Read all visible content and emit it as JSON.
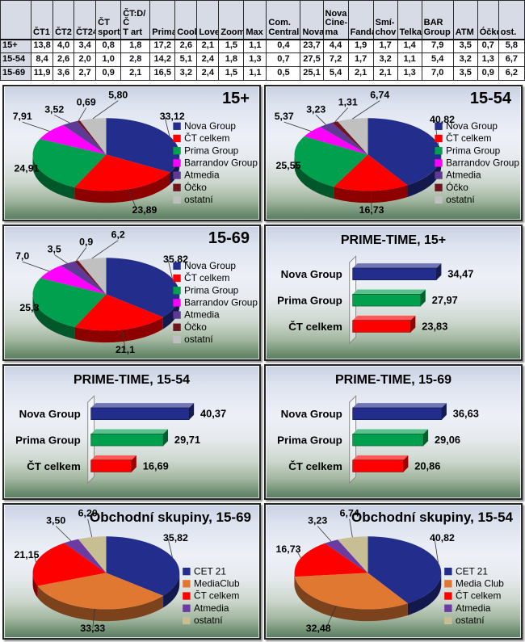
{
  "table": {
    "corner": "",
    "columns": [
      "ČT1",
      "ČT2",
      "ČT24",
      "ČT\nsport",
      "ČT:D/Č\nT art",
      "Prima",
      "Cool",
      "Love",
      "Zoom",
      "Max",
      "Com.\nCentral",
      "Nova",
      "Nova\nCine-\nma",
      "Fanda",
      "Smí-\nchov",
      "Telka",
      "BAR\nGroup",
      "ATM",
      "Óčko",
      "ost."
    ],
    "rows": [
      {
        "label": "15+",
        "values": [
          "13,8",
          "4,0",
          "3,4",
          "0,8",
          "1,8",
          "17,2",
          "2,6",
          "2,1",
          "1,5",
          "1,1",
          "0,4",
          "23,7",
          "4,4",
          "1,9",
          "1,7",
          "1,4",
          "7,9",
          "3,5",
          "0,7",
          "5,8"
        ]
      },
      {
        "label": "15-54",
        "values": [
          "8,4",
          "2,6",
          "2,0",
          "1,0",
          "2,8",
          "14,2",
          "5,1",
          "2,4",
          "1,8",
          "1,3",
          "0,7",
          "27,5",
          "7,2",
          "1,7",
          "3,2",
          "1,1",
          "5,4",
          "3,2",
          "1,3",
          "6,7"
        ]
      },
      {
        "label": "15-69",
        "values": [
          "11,9",
          "3,6",
          "2,7",
          "0,9",
          "2,1",
          "16,5",
          "3,2",
          "2,4",
          "1,5",
          "1,1",
          "0,5",
          "25,1",
          "5,4",
          "2,1",
          "2,1",
          "1,3",
          "7,0",
          "3,5",
          "0,9",
          "6,2"
        ]
      }
    ]
  },
  "colors": {
    "navy": "#232E8C",
    "red": "#FF0000",
    "green": "#00A04E",
    "magenta": "#FF00FF",
    "purple": "#5E3A94",
    "maroon": "#6E1520",
    "silver": "#C0C0C0",
    "orange": "#E07832",
    "tan": "#C8BE94",
    "panel_border": "#262626"
  },
  "chart_data": [
    {
      "type": "pie",
      "title": "15+",
      "labels": [
        "Nova Group",
        "ČT celkem",
        "Prima Group",
        "Barrandov Group",
        "Atmedia",
        "Óčko",
        "ostatní"
      ],
      "values": [
        33.12,
        23.89,
        24.91,
        7.91,
        3.52,
        0.69,
        5.8
      ],
      "display": [
        "33,12",
        "23,89",
        "24,91",
        "7,91",
        "3,52",
        "0,69",
        "5,80"
      ],
      "colors": [
        "#232E8C",
        "#FF0000",
        "#00A04E",
        "#FF00FF",
        "#5E3A94",
        "#6E1520",
        "#C0C0C0"
      ],
      "legend_position": "right"
    },
    {
      "type": "pie",
      "title": "15-54",
      "labels": [
        "Nova Group",
        "ČT celkem",
        "Prima Group",
        "Barrandov Group",
        "Atmedia",
        "Óčko",
        "ostatní"
      ],
      "values": [
        40.82,
        16.73,
        25.55,
        5.37,
        3.23,
        1.31,
        6.74
      ],
      "display": [
        "40,82",
        "16,73",
        "25,55",
        "5,37",
        "3,23",
        "1,31",
        "6,74"
      ],
      "colors": [
        "#232E8C",
        "#FF0000",
        "#00A04E",
        "#FF00FF",
        "#5E3A94",
        "#6E1520",
        "#C0C0C0"
      ],
      "legend_position": "right"
    },
    {
      "type": "pie",
      "title": "15-69",
      "labels": [
        "Nova Group",
        "ČT celkem",
        "Prima Group",
        "Barrandov Group",
        "Atmedia",
        "Óčko",
        "ostatní"
      ],
      "values": [
        35.82,
        21.1,
        25.3,
        7.0,
        3.5,
        0.9,
        6.2
      ],
      "display": [
        "35,82",
        "21,1",
        "25,3",
        "7,0",
        "3,5",
        "0,9",
        "6,2"
      ],
      "colors": [
        "#232E8C",
        "#FF0000",
        "#00A04E",
        "#FF00FF",
        "#5E3A94",
        "#6E1520",
        "#C0C0C0"
      ],
      "legend_position": "right"
    },
    {
      "type": "bar",
      "title": "PRIME-TIME, 15+",
      "categories": [
        "Nova Group",
        "Prima Group",
        "ČT celkem"
      ],
      "values": [
        34.47,
        27.97,
        23.83
      ],
      "display": [
        "34,47",
        "27,97",
        "23,83"
      ],
      "colors": [
        "#232E8C",
        "#00A04E",
        "#FF0000"
      ],
      "xlim": [
        0,
        50
      ],
      "grid": false
    },
    {
      "type": "bar",
      "title": "PRIME-TIME, 15-54",
      "categories": [
        "Nova Group",
        "Prima Group",
        "ČT celkem"
      ],
      "values": [
        40.37,
        29.71,
        16.69
      ],
      "display": [
        "40,37",
        "29,71",
        "16,69"
      ],
      "colors": [
        "#232E8C",
        "#00A04E",
        "#FF0000"
      ],
      "xlim": [
        0,
        50
      ],
      "grid": false
    },
    {
      "type": "bar",
      "title": "PRIME-TIME, 15-69",
      "categories": [
        "Nova Group",
        "Prima Group",
        "ČT celkem"
      ],
      "values": [
        36.63,
        29.06,
        20.86
      ],
      "display": [
        "36,63",
        "29,06",
        "20,86"
      ],
      "colors": [
        "#232E8C",
        "#00A04E",
        "#FF0000"
      ],
      "xlim": [
        0,
        50
      ],
      "grid": false
    },
    {
      "type": "pie",
      "title": "Obchodní skupiny, 15-69",
      "labels": [
        "CET 21",
        "MediaClub",
        "ČT celkem",
        "Atmedia",
        "ostatní"
      ],
      "values": [
        35.82,
        33.33,
        21.15,
        3.5,
        6.2
      ],
      "display": [
        "35,82",
        "33,33",
        "21,15",
        "3,50",
        "6,20"
      ],
      "colors": [
        "#232E8C",
        "#E07832",
        "#FF0000",
        "#6A3BA0",
        "#C8BE94"
      ],
      "legend_position": "right"
    },
    {
      "type": "pie",
      "title": "Obchodní skupiny, 15-54",
      "labels": [
        "CET 21",
        "Media Club",
        "ČT celkem",
        "Atmedia",
        "ostatní"
      ],
      "values": [
        40.82,
        32.48,
        16.73,
        3.23,
        6.74
      ],
      "display": [
        "40,82",
        "32,48",
        "16,73",
        "3,23",
        "6,74"
      ],
      "colors": [
        "#232E8C",
        "#E07832",
        "#FF0000",
        "#6A3BA0",
        "#C8BE94"
      ],
      "legend_position": "right"
    }
  ]
}
